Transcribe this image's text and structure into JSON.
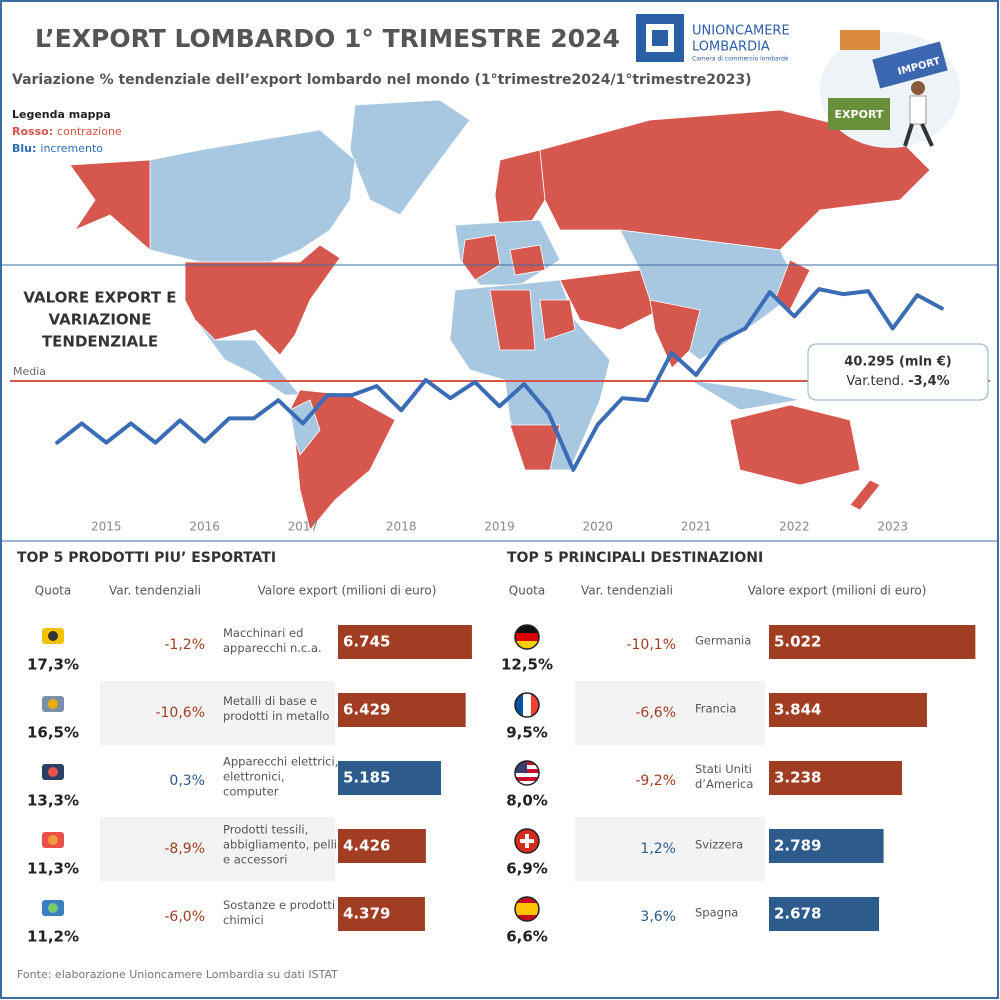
{
  "header": {
    "title": "L’EXPORT LOMBARDO 1° TRIMESTRE 2024",
    "subtitle": "Variazione % tendenziale dell’export lombardo nel mondo (1°trimestre2024/1°trimestre2023)"
  },
  "logo": {
    "name1": "UNIONCAMERE",
    "name2": "LOMBARDIA",
    "tagline": "Camera di commercio lombarde"
  },
  "illustration": {
    "import": "IMPORT",
    "export": "EXPORT"
  },
  "map_legend": {
    "title": "Legenda mappa",
    "red_key": "Rosso:",
    "red_text": "contrazione",
    "blue_key": "Blu:",
    "blue_text": "incremento",
    "red_color": "#d9544a",
    "blue_color": "#2f6db3"
  },
  "chart_data": [
    {
      "type": "line",
      "title": [
        "VALORE EXPORT E",
        "VARIAZIONE",
        "TENDENZIALE"
      ],
      "x": [
        2015,
        2015.25,
        2015.5,
        2015.75,
        2016,
        2016.25,
        2016.5,
        2016.75,
        2017,
        2017.25,
        2017.5,
        2017.75,
        2018,
        2018.25,
        2018.5,
        2018.75,
        2019,
        2019.25,
        2019.5,
        2019.75,
        2020,
        2020.25,
        2020.5,
        2020.75,
        2021,
        2021.25,
        2021.5,
        2021.75,
        2022,
        2022.25,
        2022.5,
        2022.75,
        2023,
        2023.25,
        2023.5,
        2023.75,
        2024
      ],
      "values": [
        27000,
        28900,
        27000,
        28900,
        27000,
        29200,
        27100,
        29400,
        29400,
        31200,
        28900,
        31700,
        31700,
        32600,
        30200,
        33200,
        31400,
        33000,
        30600,
        32800,
        29900,
        24300,
        28800,
        31400,
        31200,
        35900,
        33700,
        37100,
        38300,
        41900,
        39500,
        42200,
        41700,
        42000,
        38300,
        41600,
        40295
      ],
      "color": "#3a6db5",
      "xlim": [
        2014.5,
        2024.5
      ],
      "xticks": [
        {
          "value": 2015.5,
          "label": "2015"
        },
        {
          "value": 2016.5,
          "label": "2016"
        },
        {
          "value": 2017.5,
          "label": "2017"
        },
        {
          "value": 2018.5,
          "label": "2018"
        },
        {
          "value": 2019.5,
          "label": "2019"
        },
        {
          "value": 2020.5,
          "label": "2020"
        },
        {
          "value": 2021.5,
          "label": "2021"
        },
        {
          "value": 2022.5,
          "label": "2022"
        },
        {
          "value": 2023.5,
          "label": "2023"
        }
      ],
      "ylim": [
        23300,
        43300
      ],
      "mean": 33100,
      "mean_label": "Media",
      "mean_color": "#d9534f",
      "annotation": {
        "value": "40.295 (mln €)",
        "change_label": "Var.tend.",
        "change": "-3,4%"
      }
    },
    {
      "type": "bar",
      "orientation": "horizontal",
      "title": "TOP 5 PRODOTTI PIU’ ESPORTATI",
      "columns": [
        "Quota",
        "Var. tendenziali",
        "Valore export (milioni di euro)"
      ],
      "categories": [
        [
          "Macchinari ed",
          "apparecchi n.c.a."
        ],
        [
          "Metalli di base e",
          "prodotti in metallo"
        ],
        [
          "Apparecchi elettrici,",
          "elettronici,",
          "computer"
        ],
        [
          "Prodotti tessili,",
          "abbigliamento, pelli",
          "e accessori"
        ],
        [
          "Sostanze e prodotti",
          "chimici"
        ]
      ],
      "values": [
        6745,
        6429,
        5185,
        4426,
        4379
      ],
      "value_labels": [
        "6.745",
        "6.429",
        "5.185",
        "4.426",
        "4.379"
      ],
      "colors": [
        "#a03d22",
        "#a03d22",
        "#2d5b8c",
        "#a03d22",
        "#a03d22"
      ],
      "share": [
        17.3,
        16.5,
        13.3,
        11.3,
        11.2
      ],
      "share_labels": [
        "17,3%",
        "16,5%",
        "13,3%",
        "11,3%",
        "11,2%"
      ],
      "change": [
        -1.2,
        -10.6,
        0.3,
        -8.9,
        -6.0
      ],
      "change_labels": [
        "-1,2%",
        "-10,6%",
        "0,3%",
        "-8,9%",
        "-6,0%"
      ],
      "xlim": [
        0,
        7000
      ]
    },
    {
      "type": "bar",
      "orientation": "horizontal",
      "title": "TOP 5 PRINCIPALI DESTINAZIONI",
      "columns": [
        "Quota",
        "Var. tendenziali",
        "Valore export (milioni di euro)"
      ],
      "categories": [
        [
          "Germania"
        ],
        [
          "Francia"
        ],
        [
          "Stati Uniti",
          "d’America"
        ],
        [
          "Svizzera"
        ],
        [
          "Spagna"
        ]
      ],
      "values": [
        5022,
        3844,
        3238,
        2789,
        2678
      ],
      "value_labels": [
        "5.022",
        "3.844",
        "3.238",
        "2.789",
        "2.678"
      ],
      "colors": [
        "#a03d22",
        "#a03d22",
        "#a03d22",
        "#2d5b8c",
        "#2d5b8c"
      ],
      "share": [
        12.5,
        9.5,
        8.0,
        6.9,
        6.6
      ],
      "share_labels": [
        "12,5%",
        "9,5%",
        "8,0%",
        "6,9%",
        "6,6%"
      ],
      "change": [
        -10.1,
        -6.6,
        -9.2,
        1.2,
        3.6
      ],
      "change_labels": [
        "-10,1%",
        "-6,6%",
        "-9,2%",
        "1,2%",
        "3,6%"
      ],
      "xlim": [
        0,
        5500
      ]
    }
  ],
  "footer": "Fonte: elaborazione Unioncamere Lombardia su dati ISTAT"
}
